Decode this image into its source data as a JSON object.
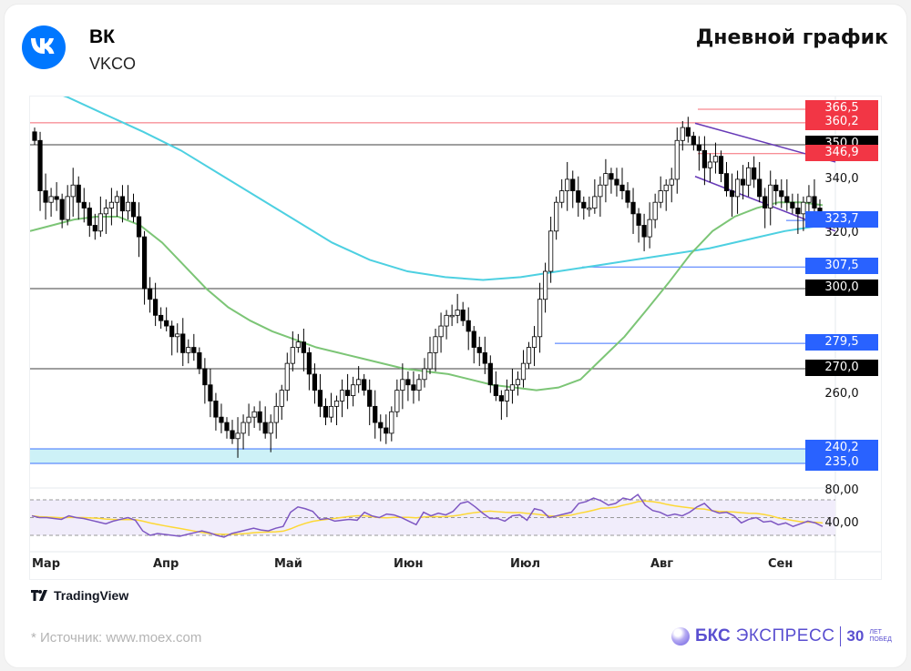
{
  "header": {
    "company": "ВК",
    "ticker": "VKCO",
    "title": "Дневной график"
  },
  "footer": {
    "tradingview": "TradingView",
    "source": "*  Источник: www.moex.com",
    "brand_bold": "БКС",
    "brand_light": "ЭКСПРЕСС",
    "brand_anniv": "30",
    "brand_anniv_sub1": "ЛЕТ",
    "brand_anniv_sub2": "ПОБЕД"
  },
  "colors": {
    "resistance": "#f23645",
    "support": "#2962ff",
    "round_level": "#000000",
    "ma_fast": "#7cc576",
    "ma_slow": "#4dd0e1",
    "channel": "#673ab7",
    "rsi": "#7e57c2",
    "rsi_ma": "#fdd835",
    "zone_fill": "#cdf1f7"
  },
  "chart_data": {
    "type": "candlestick",
    "title": "Дневной график",
    "instrument": "ВК (VKCO)",
    "xlabel": "",
    "ylabel": "",
    "x_ticks": [
      "Мар",
      "Апр",
      "Май",
      "Июн",
      "Июл",
      "Авг",
      "Сен"
    ],
    "y_ticks": [
      "340,0",
      "320,0",
      "260,0"
    ],
    "ylim": [
      230,
      372
    ],
    "price_levels": [
      {
        "label": "366,5",
        "value": 366.5,
        "kind": "resistance"
      },
      {
        "label": "360,2",
        "value": 360.2,
        "kind": "resistance"
      },
      {
        "label": "350,0",
        "value": 350.0,
        "kind": "round"
      },
      {
        "label": "346,9",
        "value": 346.9,
        "kind": "resistance"
      },
      {
        "label": "323,7",
        "value": 323.7,
        "kind": "support"
      },
      {
        "label": "307,5",
        "value": 307.5,
        "kind": "support"
      },
      {
        "label": "300,0",
        "value": 300.0,
        "kind": "round"
      },
      {
        "label": "279,5",
        "value": 279.5,
        "kind": "support"
      },
      {
        "label": "270,0",
        "value": 270.0,
        "kind": "round"
      },
      {
        "label": "240,2",
        "value": 240.2,
        "kind": "support"
      },
      {
        "label": "235,0",
        "value": 235.0,
        "kind": "support"
      }
    ],
    "support_zone": [
      235.0,
      240.2
    ],
    "candles_close_approx": [
      352,
      334,
      330,
      332,
      331,
      324,
      332,
      336,
      330,
      328,
      322,
      320,
      326,
      328,
      330,
      332,
      327,
      330,
      325,
      318,
      300,
      296,
      290,
      288,
      286,
      282,
      283,
      276,
      278,
      276,
      270,
      264,
      258,
      252,
      250,
      247,
      244,
      246,
      250,
      252,
      254,
      250,
      246,
      250,
      256,
      262,
      272,
      278,
      280,
      276,
      268,
      262,
      256,
      252,
      256,
      258,
      262,
      260,
      264,
      266,
      262,
      256,
      250,
      248,
      246,
      254,
      262,
      266,
      264,
      262,
      266,
      270,
      276,
      282,
      286,
      290,
      290,
      292,
      288,
      284,
      278,
      276,
      272,
      264,
      260,
      258,
      262,
      264,
      266,
      272,
      278,
      282,
      296,
      306,
      320,
      330,
      334,
      338,
      334,
      330,
      328,
      328,
      332,
      336,
      340,
      338,
      336,
      334,
      330,
      326,
      322,
      318,
      324,
      330,
      334,
      336,
      338,
      352,
      358,
      354,
      350,
      348,
      342,
      344,
      346,
      340,
      334,
      332,
      338,
      336,
      342,
      338,
      332,
      328,
      336,
      334,
      332,
      330,
      328,
      326,
      330,
      332,
      328,
      325
    ],
    "series": [
      {
        "name": "MA fast (green)",
        "values_approx": [
          320,
          322,
          324,
          325,
          325,
          322,
          316,
          308,
          300,
          293,
          288,
          284,
          281,
          278,
          276,
          274,
          272,
          270,
          269,
          268,
          266,
          264,
          263,
          262,
          263,
          266,
          274,
          282,
          292,
          302,
          312,
          320,
          325,
          328,
          330,
          330,
          329
        ]
      },
      {
        "name": "MA slow (cyan)",
        "values_approx": [
          378,
          372,
          364,
          356,
          348,
          340,
          332,
          324,
          316,
          310,
          306,
          304,
          303,
          304,
          306,
          308,
          310,
          312,
          314,
          317,
          320,
          322
        ]
      }
    ],
    "channel": {
      "upper": [
        [
          360,
          352
        ],
        [
          896,
          334
        ]
      ],
      "lower": [
        [
          340,
          338
        ],
        [
          896,
          316
        ]
      ]
    },
    "rsi": {
      "y_ticks": [
        "80,00",
        "40,00"
      ],
      "bands": [
        70,
        50,
        30
      ],
      "values_approx": [
        52,
        50,
        50,
        49,
        48,
        52,
        50,
        49,
        47,
        45,
        43,
        46,
        48,
        50,
        47,
        35,
        30,
        32,
        31,
        30,
        29,
        31,
        33,
        35,
        33,
        30,
        28,
        32,
        34,
        36,
        38,
        36,
        35,
        38,
        40,
        56,
        62,
        60,
        57,
        48,
        49,
        46,
        47,
        48,
        47,
        56,
        52,
        50,
        54,
        53,
        50,
        46,
        42,
        56,
        52,
        55,
        53,
        57,
        66,
        68,
        62,
        55,
        49,
        49,
        46,
        52,
        53,
        47,
        60,
        58,
        50,
        52,
        54,
        56,
        66,
        68,
        72,
        69,
        64,
        66,
        72,
        70,
        76,
        64,
        58,
        56,
        52,
        54,
        52,
        56,
        62,
        66,
        58,
        55,
        56,
        52,
        44,
        48,
        50,
        45,
        46,
        42,
        44,
        40,
        43,
        46,
        44,
        40
      ]
    }
  }
}
